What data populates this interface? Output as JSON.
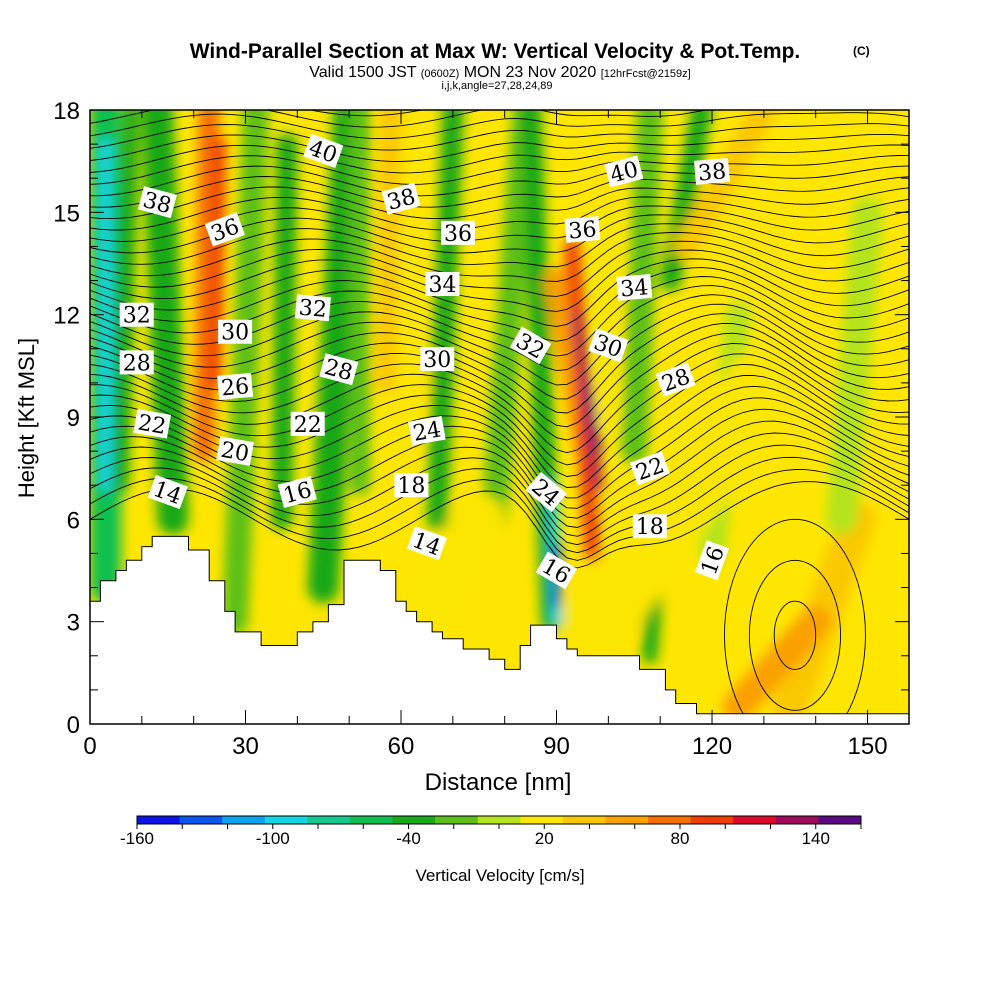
{
  "chart_data": {
    "type": "heatmap",
    "title": "Wind-Parallel Section at Max W: Vertical Velocity & Pot.Temp.",
    "title_unit": "(C)",
    "subtitle": {
      "valid": "Valid 1500 JST",
      "utc": "(0600Z)",
      "date": "MON 23 Nov 2020",
      "fcst": "[12hrFcst@2159z]"
    },
    "subtitle2": "i,j,k,angle=27,28,24,89",
    "xlabel": "Distance [nm]",
    "ylabel": "Height [Kft MSL]",
    "xlim": [
      0,
      158
    ],
    "ylim": [
      0,
      18
    ],
    "x_ticks": [
      "0",
      "30",
      "60",
      "90",
      "120",
      "150"
    ],
    "y_ticks": [
      "0",
      "3",
      "6",
      "9",
      "12",
      "15",
      "18"
    ],
    "colorbar": {
      "label": "Vertical Velocity [cm/s]",
      "tick_labels": [
        "-160",
        "-100",
        "-40",
        "20",
        "80",
        "140"
      ],
      "levels": [
        -160,
        -140,
        -120,
        -100,
        -80,
        -60,
        -40,
        -20,
        0,
        20,
        40,
        60,
        80,
        100,
        120,
        140,
        160
      ],
      "colors": [
        "#0a14e6",
        "#0a55f0",
        "#0aa5f0",
        "#12d6e4",
        "#14c890",
        "#10c050",
        "#18a818",
        "#5cc018",
        "#b4e41e",
        "#fae600",
        "#fac800",
        "#faa000",
        "#f56e00",
        "#f03c00",
        "#dc0a28",
        "#a00a5a",
        "#5a0a82"
      ]
    },
    "terrain": [
      [
        0,
        3.6
      ],
      [
        2,
        3.6
      ],
      [
        2,
        4.2
      ],
      [
        5,
        4.2
      ],
      [
        5,
        4.5
      ],
      [
        7,
        4.5
      ],
      [
        7,
        4.8
      ],
      [
        10,
        4.8
      ],
      [
        10,
        5.2
      ],
      [
        12,
        5.2
      ],
      [
        12,
        5.5
      ],
      [
        19,
        5.5
      ],
      [
        19,
        5.1
      ],
      [
        23,
        5.1
      ],
      [
        23,
        4.2
      ],
      [
        26,
        4.2
      ],
      [
        26,
        3.3
      ],
      [
        28,
        3.3
      ],
      [
        28,
        2.7
      ],
      [
        33,
        2.7
      ],
      [
        33,
        2.3
      ],
      [
        40,
        2.3
      ],
      [
        40,
        2.7
      ],
      [
        43,
        2.7
      ],
      [
        43,
        3.0
      ],
      [
        46,
        3.0
      ],
      [
        46,
        3.5
      ],
      [
        49,
        3.5
      ],
      [
        49,
        4.8
      ],
      [
        56,
        4.8
      ],
      [
        56,
        4.5
      ],
      [
        59,
        4.5
      ],
      [
        59,
        3.6
      ],
      [
        61,
        3.6
      ],
      [
        61,
        3.3
      ],
      [
        63,
        3.3
      ],
      [
        63,
        3.0
      ],
      [
        66,
        3.0
      ],
      [
        66,
        2.7
      ],
      [
        68,
        2.7
      ],
      [
        68,
        2.5
      ],
      [
        72,
        2.5
      ],
      [
        72,
        2.2
      ],
      [
        77,
        2.2
      ],
      [
        77,
        1.9
      ],
      [
        80,
        1.9
      ],
      [
        80,
        1.6
      ],
      [
        83,
        1.6
      ],
      [
        83,
        2.3
      ],
      [
        85,
        2.3
      ],
      [
        85,
        2.9
      ],
      [
        90,
        2.9
      ],
      [
        90,
        2.5
      ],
      [
        92,
        2.5
      ],
      [
        92,
        2.2
      ],
      [
        94,
        2.2
      ],
      [
        94,
        2.0
      ],
      [
        106,
        2.0
      ],
      [
        106,
        1.6
      ],
      [
        111,
        1.6
      ],
      [
        111,
        1.0
      ],
      [
        113,
        1.0
      ],
      [
        113,
        0.6
      ],
      [
        117,
        0.6
      ],
      [
        117,
        0.3
      ],
      [
        158,
        0.3
      ]
    ],
    "isentrope_labels": [
      {
        "text": "14",
        "x": 15,
        "y": 6.8,
        "rot": 20
      },
      {
        "text": "16",
        "x": 40,
        "y": 6.8,
        "rot": -15
      },
      {
        "text": "14",
        "x": 65,
        "y": 5.3,
        "rot": 20
      },
      {
        "text": "16",
        "x": 90,
        "y": 4.5,
        "rot": 30
      },
      {
        "text": "16",
        "x": 120,
        "y": 4.8,
        "rot": -70
      },
      {
        "text": "18",
        "x": 62,
        "y": 7.0,
        "rot": 0
      },
      {
        "text": "18",
        "x": 108,
        "y": 5.8,
        "rot": 0
      },
      {
        "text": "20",
        "x": 28,
        "y": 8.0,
        "rot": 10
      },
      {
        "text": "22",
        "x": 12,
        "y": 8.8,
        "rot": 10
      },
      {
        "text": "22",
        "x": 42,
        "y": 8.8,
        "rot": 0
      },
      {
        "text": "22",
        "x": 108,
        "y": 7.5,
        "rot": -20
      },
      {
        "text": "24",
        "x": 65,
        "y": 8.6,
        "rot": -10
      },
      {
        "text": "24",
        "x": 88,
        "y": 6.8,
        "rot": 40
      },
      {
        "text": "26",
        "x": 28,
        "y": 9.9,
        "rot": -5
      },
      {
        "text": "28",
        "x": 9,
        "y": 10.6,
        "rot": 0
      },
      {
        "text": "28",
        "x": 48,
        "y": 10.4,
        "rot": 15
      },
      {
        "text": "28",
        "x": 113,
        "y": 10.1,
        "rot": -20
      },
      {
        "text": "30",
        "x": 28,
        "y": 11.5,
        "rot": 0
      },
      {
        "text": "30",
        "x": 67,
        "y": 10.7,
        "rot": 0
      },
      {
        "text": "30",
        "x": 100,
        "y": 11.1,
        "rot": 20
      },
      {
        "text": "32",
        "x": 9,
        "y": 12.0,
        "rot": 0
      },
      {
        "text": "32",
        "x": 43,
        "y": 12.2,
        "rot": 5
      },
      {
        "text": "32",
        "x": 85,
        "y": 11.1,
        "rot": 30
      },
      {
        "text": "34",
        "x": 68,
        "y": 12.9,
        "rot": 0
      },
      {
        "text": "34",
        "x": 105,
        "y": 12.8,
        "rot": -5
      },
      {
        "text": "36",
        "x": 26,
        "y": 14.5,
        "rot": -20
      },
      {
        "text": "36",
        "x": 71,
        "y": 14.4,
        "rot": 0
      },
      {
        "text": "36",
        "x": 95,
        "y": 14.5,
        "rot": -5
      },
      {
        "text": "38",
        "x": 13,
        "y": 15.3,
        "rot": 15
      },
      {
        "text": "38",
        "x": 60,
        "y": 15.4,
        "rot": -15
      },
      {
        "text": "38",
        "x": 120,
        "y": 16.2,
        "rot": -5
      },
      {
        "text": "40",
        "x": 45,
        "y": 16.8,
        "rot": 20
      },
      {
        "text": "40",
        "x": 103,
        "y": 16.2,
        "rot": -15
      }
    ]
  }
}
